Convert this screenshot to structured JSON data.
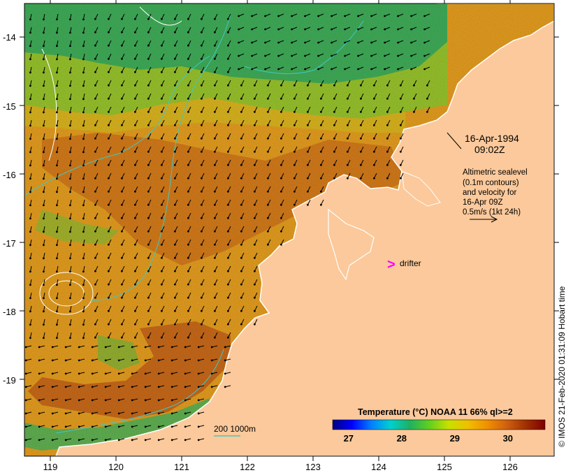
{
  "x_axis": {
    "ticks": [
      "119",
      "120",
      "121",
      "122",
      "123",
      "124",
      "125",
      "126"
    ]
  },
  "y_axis": {
    "ticks": [
      "-14",
      "-15",
      "-16",
      "-17",
      "-18",
      "-19"
    ]
  },
  "timestamp": {
    "date": "16-Apr-1994",
    "time": "09:02Z"
  },
  "legend_text": {
    "line1": "Altimetric sealevel",
    "line2": "(0.1m contours)",
    "line3": "and velocity for",
    "line4": "16-Apr 09Z",
    "line5": "0.5m/s (1kt 24h)"
  },
  "drifter": {
    "marker": ">",
    "label": "drifter",
    "color": "#ff00ff"
  },
  "bathymetry_key": {
    "label": "200  1000m",
    "color": "#40c8c8"
  },
  "colorbar": {
    "title": "Temperature (°C) NOAA 11 66% ql>=2",
    "ticks": [
      "27",
      "28",
      "29",
      "30"
    ],
    "tick_values": [
      27,
      28,
      29,
      30
    ],
    "range": [
      26.7,
      30.7
    ],
    "colors": [
      "#00007f",
      "#0000ff",
      "#0080ff",
      "#00d0d0",
      "#20b060",
      "#60d020",
      "#c8e000",
      "#f0c000",
      "#f09000",
      "#d06010",
      "#a03000",
      "#800000"
    ]
  },
  "credit": "© IMOS 21-Feb-2020 01:31:09 Hobart time",
  "colors": {
    "land": "#fbc99b",
    "coast": "#ffffff",
    "vectors": "#000000",
    "contours": "#ffffff",
    "bathymetry": "#40c8c8"
  }
}
